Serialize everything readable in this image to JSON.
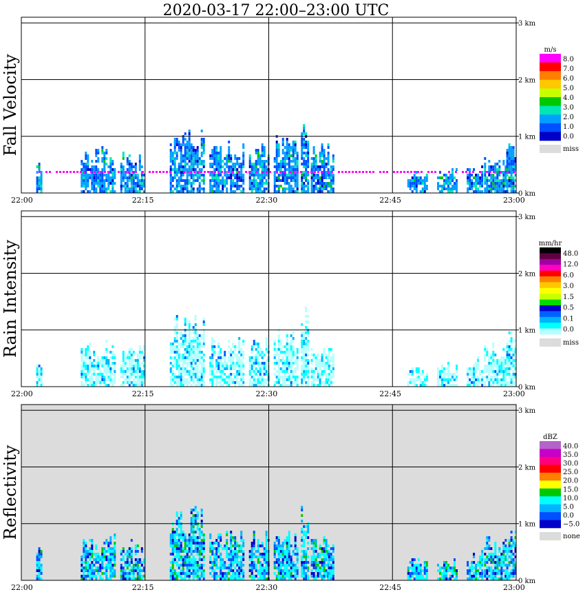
{
  "title": "2020-03-17   22:00–23:00 UTC",
  "chart_data": [
    {
      "type": "heatmap",
      "title": "Fall Velocity",
      "x_ticks": [
        "22:00",
        "22:15",
        "22:30",
        "22:45",
        "23:00"
      ],
      "y_ticks": [
        "0 km",
        "1 km",
        "2 km",
        "3 km"
      ],
      "xlim": [
        "22:00",
        "23:00"
      ],
      "ylim_km": [
        0,
        3.1
      ],
      "grid": true,
      "legend": {
        "unit": "m/s",
        "placement": "right",
        "labels": [
          "8.0",
          "7.0",
          "6.0",
          "5.0",
          "4.0",
          "3.0",
          "2.0",
          "1.0",
          "0.0"
        ],
        "colors": [
          "#ff00ff",
          "#ff0000",
          "#ff8000",
          "#ffc800",
          "#c8ff00",
          "#00c800",
          "#00e6b4",
          "#00a0ff",
          "#0050ff",
          "#0000c8"
        ],
        "missing_label": "miss",
        "missing_color": "#dcdcdc"
      }
    },
    {
      "type": "heatmap",
      "title": "Rain Intensity",
      "x_ticks": [
        "22:00",
        "22:15",
        "22:30",
        "22:45",
        "23:00"
      ],
      "y_ticks": [
        "0 km",
        "1 km",
        "2 km",
        "3 km"
      ],
      "xlim": [
        "22:00",
        "23:00"
      ],
      "ylim_km": [
        0,
        3.1
      ],
      "grid": true,
      "legend": {
        "unit": "mm/hr",
        "placement": "right",
        "labels": [
          "48.0",
          "12.0",
          "6.0",
          "3.0",
          "1.5",
          "0.5",
          "0.1",
          "0.0"
        ],
        "colors": [
          "#000000",
          "#600040",
          "#a000a0",
          "#ff00c8",
          "#ff0000",
          "#ff8000",
          "#ffc800",
          "#ffff00",
          "#c8ff00",
          "#00dc00",
          "#0000c8",
          "#0060ff",
          "#00b4ff",
          "#00ffff",
          "#b4ffff"
        ],
        "missing_label": "miss",
        "missing_color": "#dcdcdc"
      }
    },
    {
      "type": "heatmap",
      "title": "Reflectivity",
      "x_ticks": [
        "22:00",
        "22:15",
        "22:30",
        "22:45",
        "23:00"
      ],
      "y_ticks": [
        "0 km",
        "1 km",
        "2 km",
        "3 km"
      ],
      "xlim": [
        "22:00",
        "23:00"
      ],
      "ylim_km": [
        0,
        3.1
      ],
      "grid": true,
      "legend": {
        "unit": "dBZ",
        "placement": "right",
        "labels": [
          "40.0",
          "35.0",
          "30.0",
          "25.0",
          "20.0",
          "15.0",
          "10.0",
          "5.0",
          "0.0",
          "−5.0"
        ],
        "colors": [
          "#b464c8",
          "#c800c8",
          "#ff0080",
          "#ff0000",
          "#ff8000",
          "#ffff00",
          "#00c800",
          "#00ffff",
          "#00b4ff",
          "#0050ff",
          "#0000c8"
        ],
        "missing_label": "none",
        "missing_color": "#dcdcdc"
      }
    }
  ]
}
